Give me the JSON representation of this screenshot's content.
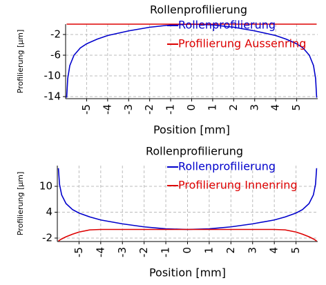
{
  "chart_data": [
    {
      "type": "line",
      "title": "Rollenprofilierung",
      "xlabel": "Position [mm]",
      "ylabel": "Profilierung [µm]",
      "x": [
        -5.95,
        -5.9,
        -5.8,
        -5.6,
        -5.3,
        -5,
        -4.5,
        -4,
        -3,
        -2,
        -1,
        0,
        1,
        2,
        3,
        4,
        4.5,
        5,
        5.3,
        5.6,
        5.8,
        5.9,
        5.95
      ],
      "series": [
        {
          "name": "Rollenprofilierung",
          "color": "#0000cc",
          "values": [
            -14.2,
            -10.5,
            -8,
            -6,
            -4.6,
            -3.8,
            -2.9,
            -2.2,
            -1.3,
            -0.6,
            -0.15,
            0,
            -0.15,
            -0.6,
            -1.3,
            -2.2,
            -2.9,
            -3.8,
            -4.6,
            -6,
            -8,
            -10.5,
            -14.2
          ]
        },
        {
          "name": "Profilierung Aussenring",
          "color": "#dd0000",
          "values": [
            0,
            0,
            0,
            0,
            0,
            0,
            0,
            0,
            0,
            0,
            0,
            0,
            0,
            0,
            0,
            0,
            0,
            0,
            0,
            0,
            0,
            0,
            0
          ]
        }
      ],
      "xlim": [
        -6,
        6
      ],
      "ylim": [
        -14.4,
        0
      ],
      "xticks": [
        -5,
        -4,
        -3,
        -2,
        -1,
        0,
        1,
        2,
        3,
        4,
        5
      ],
      "yticks": [
        -2,
        -6,
        -10,
        -14
      ],
      "grid": true,
      "legend": "top-right"
    },
    {
      "type": "line",
      "title": "Rollenprofilierung",
      "xlabel": "Position [mm]",
      "ylabel": "Profilierung [µm]",
      "x": [
        -5.95,
        -5.9,
        -5.8,
        -5.6,
        -5.3,
        -5,
        -4.5,
        -4,
        -3,
        -2,
        -1,
        0,
        1,
        2,
        3,
        4,
        4.5,
        5,
        5.3,
        5.6,
        5.8,
        5.9,
        5.95
      ],
      "series": [
        {
          "name": "Rollenprofilierung",
          "color": "#0000cc",
          "values": [
            14.2,
            10.5,
            8,
            6,
            4.6,
            3.8,
            2.9,
            2.2,
            1.3,
            0.6,
            0.15,
            0,
            0.15,
            0.6,
            1.3,
            2.2,
            2.9,
            3.8,
            4.6,
            6,
            8,
            10.5,
            14.2
          ]
        },
        {
          "name": "Profilierung Innenring",
          "color": "#dd0000",
          "values": [
            -2.7,
            -2.5,
            -2.2,
            -1.7,
            -1.1,
            -0.6,
            -0.1,
            0,
            0,
            0,
            0,
            0,
            0,
            0,
            0,
            0,
            -0.1,
            -0.6,
            -1.1,
            -1.7,
            -2.2,
            -2.5,
            -2.7
          ]
        }
      ],
      "xlim": [
        -6,
        6
      ],
      "ylim": [
        -2.8,
        14.8
      ],
      "xticks": [
        -5,
        -4,
        -3,
        -2,
        -1,
        0,
        1,
        2,
        3,
        4,
        5
      ],
      "yticks": [
        10,
        4,
        -2
      ],
      "grid": true,
      "legend": "top-right"
    }
  ]
}
